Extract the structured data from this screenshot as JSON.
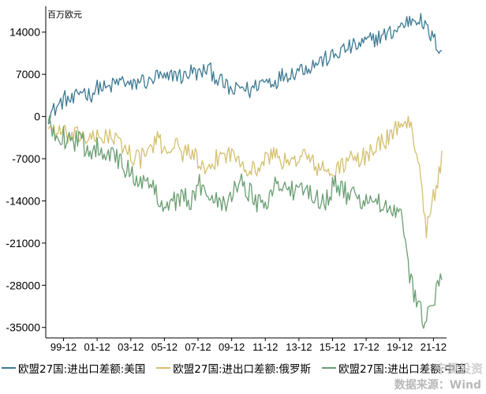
{
  "chart_data": {
    "type": "line",
    "unit": "百万欧元",
    "ylim": [
      -37000,
      17500
    ],
    "yticks": [
      14000,
      7000,
      0,
      -7000,
      -14000,
      -21000,
      -28000,
      -35000
    ],
    "xticks": [
      "99-12",
      "01-12",
      "03-12",
      "05-12",
      "07-12",
      "09-12",
      "11-12",
      "13-12",
      "15-12",
      "17-12",
      "19-12",
      "21-12"
    ],
    "x_start": "1999-01",
    "x_end": "2022-06",
    "anchor_step_months": 6,
    "grid": false,
    "legend_position": "bottom",
    "series": [
      {
        "name": "欧盟27国:进出口差额:美国",
        "color": "#3d7a93",
        "values": [
          100,
          1500,
          3000,
          2500,
          4500,
          3500,
          5000,
          4500,
          5500,
          6000,
          4800,
          6200,
          5500,
          6800,
          6000,
          7200,
          6500,
          7500,
          7000,
          8000,
          6500,
          5200,
          4000,
          5000,
          4200,
          5500,
          6000,
          5800,
          7000,
          7200,
          8000,
          8200,
          9000,
          9500,
          10000,
          11000,
          11500,
          11800,
          12500,
          13000,
          13500,
          14000,
          15000,
          16000,
          16500,
          14500,
          12500
        ]
      },
      {
        "name": "欧盟27国:进出口差额:俄罗斯",
        "color": "#d4c070",
        "values": [
          -1500,
          -2500,
          -3000,
          -3500,
          -3000,
          -4000,
          -3500,
          -3000,
          -4000,
          -5000,
          -6500,
          -7000,
          -5500,
          -4000,
          -5500,
          -4500,
          -6000,
          -5500,
          -8000,
          -10000,
          -7000,
          -6000,
          -6500,
          -7000,
          -9000,
          -8500,
          -7000,
          -6000,
          -7500,
          -8000,
          -6000,
          -7000,
          -8500,
          -9000,
          -9500,
          -8000,
          -7000,
          -7500,
          -6000,
          -5000,
          -4000,
          -3000,
          -500,
          -1500,
          -6000,
          -19000,
          -12500
        ]
      },
      {
        "name": "欧盟27国:进出口差额:中国",
        "color": "#6a9e72",
        "values": [
          -1500,
          -2500,
          -3500,
          -3800,
          -4500,
          -5500,
          -5000,
          -5500,
          -7000,
          -8500,
          -9500,
          -10500,
          -11500,
          -13000,
          -14500,
          -14000,
          -13500,
          -14000,
          -11500,
          -12500,
          -13000,
          -14500,
          -12000,
          -11000,
          -12500,
          -14500,
          -13500,
          -11500,
          -11000,
          -12500,
          -13000,
          -12000,
          -13500,
          -14000,
          -11000,
          -12500,
          -13000,
          -14000,
          -13500,
          -14500,
          -15000,
          -16000,
          -17000,
          -26000,
          -32000,
          -34000,
          -30000
        ]
      }
    ]
  },
  "footer": {
    "source": "数据来源：Wind",
    "watermark": "宁夏投资"
  }
}
